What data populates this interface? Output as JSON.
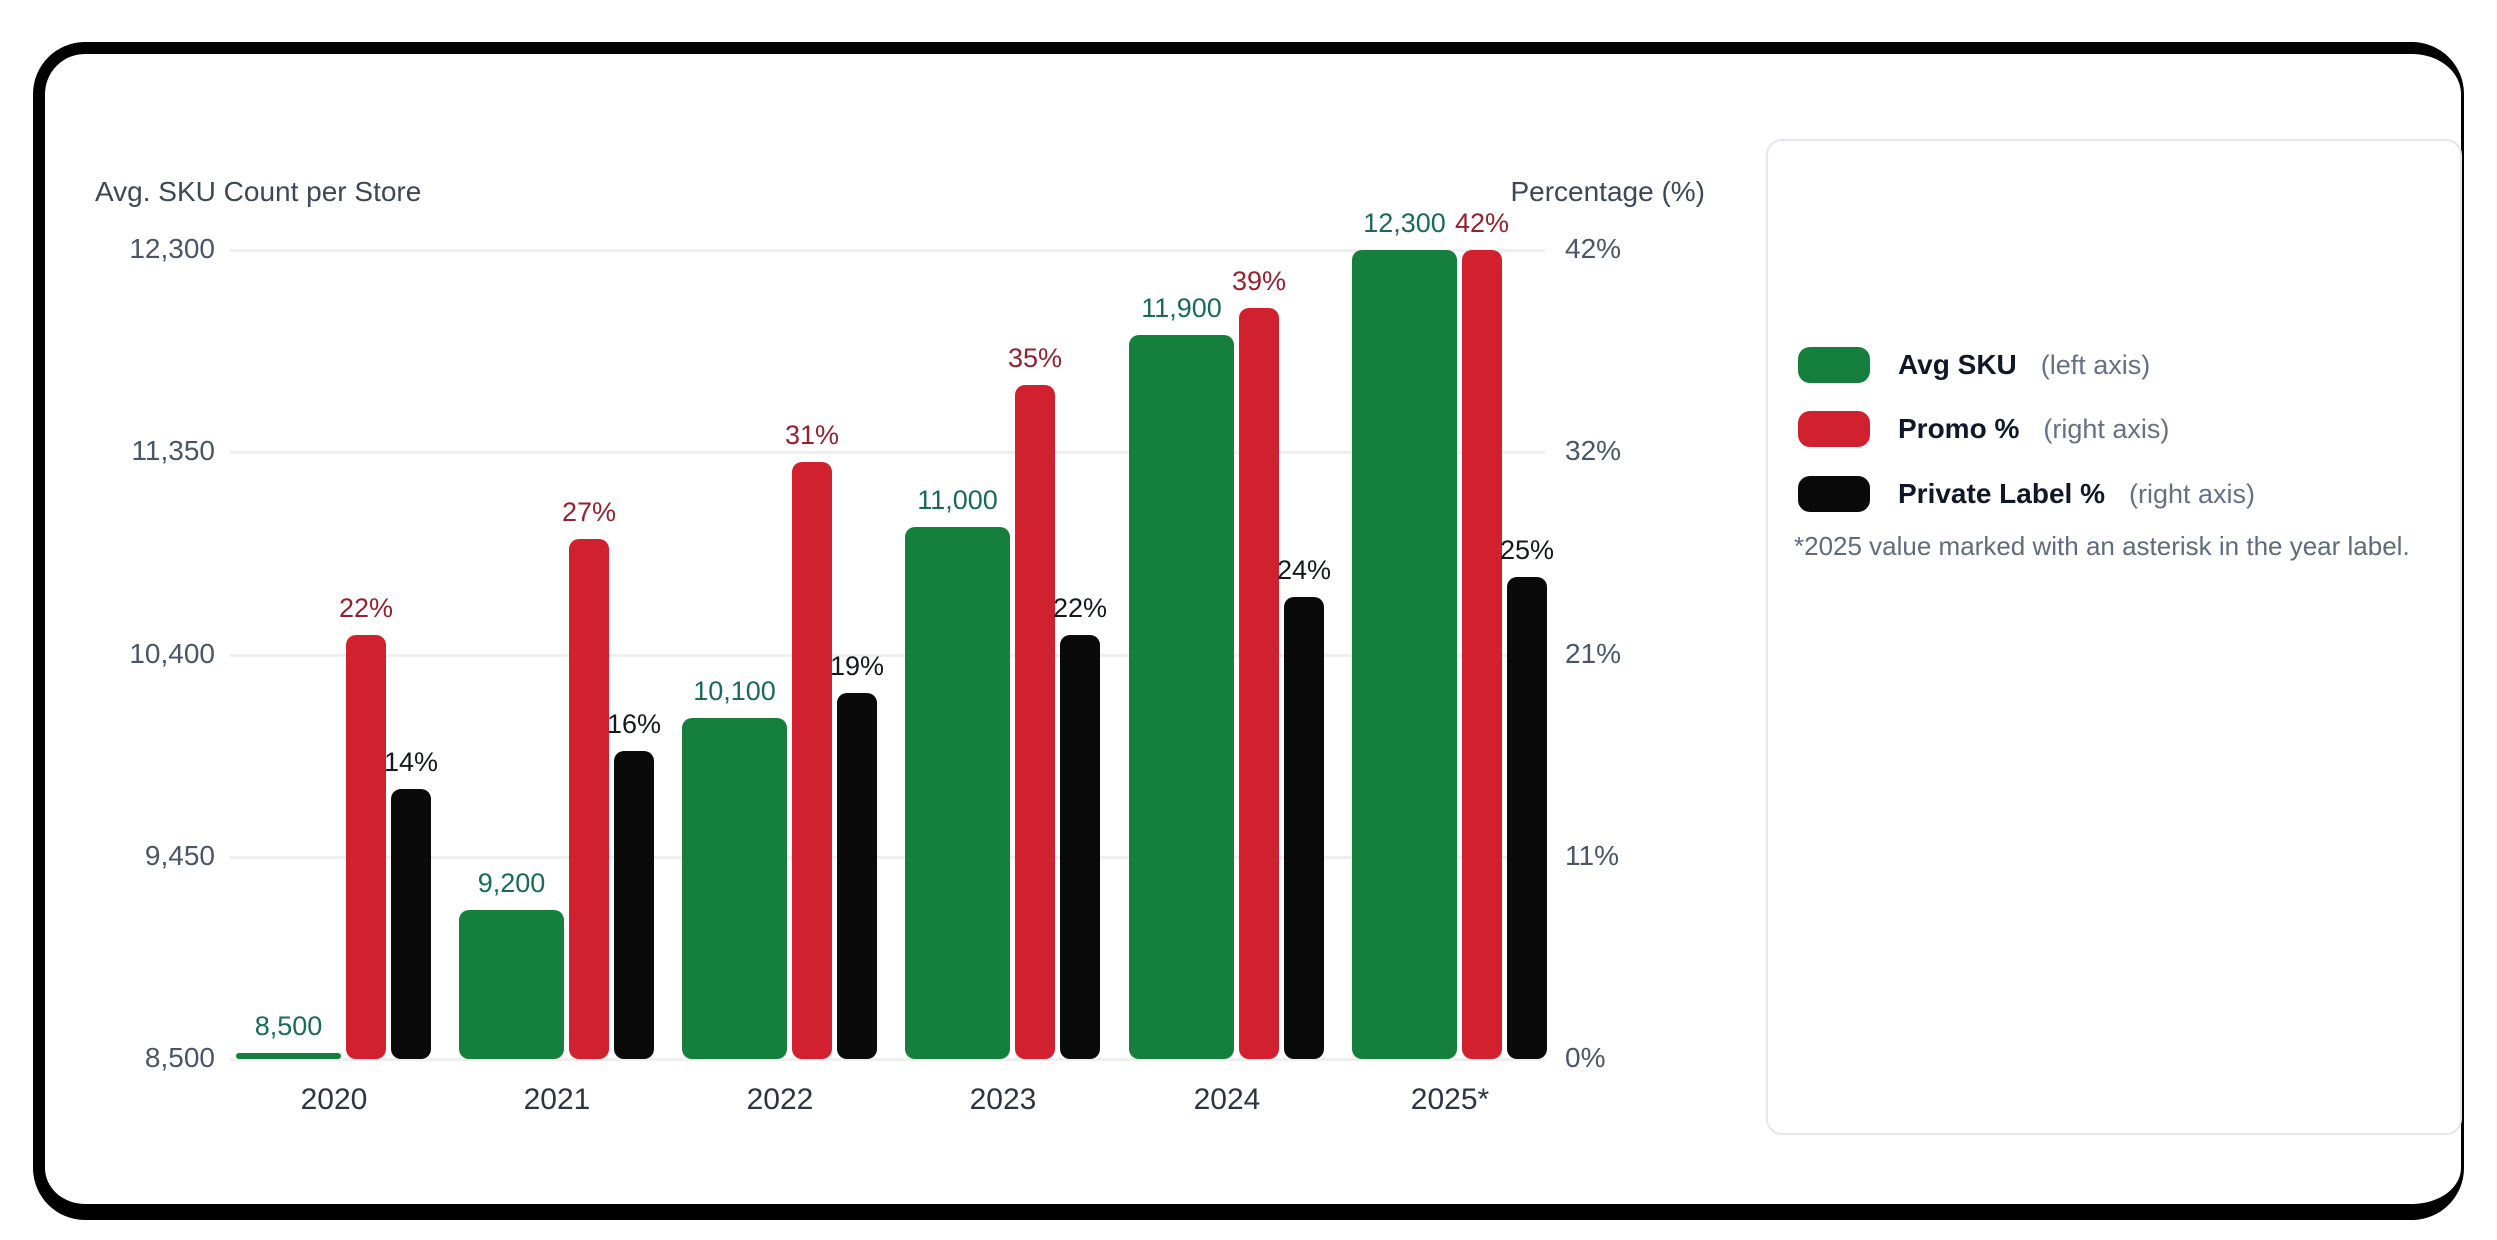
{
  "chart_data": {
    "type": "bar",
    "title": "",
    "left_axis_title": "Avg. SKU Count per Store",
    "right_axis_title": "Percentage (%)",
    "categories": [
      "2020",
      "2021",
      "2022",
      "2023",
      "2024",
      "2025*"
    ],
    "series": [
      {
        "name": "Avg SKU",
        "axis": "left",
        "color": "#15803d",
        "label_color": "#1a6a5c",
        "values": [
          8500,
          9200,
          10100,
          11000,
          11900,
          12300
        ],
        "labels": [
          "8,500",
          "9,200",
          "10,100",
          "11,000",
          "11,900",
          "12,300"
        ]
      },
      {
        "name": "Promo %",
        "axis": "right",
        "color": "#d1202e",
        "label_color": "#95202e",
        "values": [
          22,
          27,
          31,
          35,
          39,
          42
        ],
        "labels": [
          "22%",
          "27%",
          "31%",
          "35%",
          "39%",
          "42%"
        ]
      },
      {
        "name": "Private Label %",
        "axis": "right",
        "color": "#0a0a0a",
        "label_color": "#15181d",
        "values": [
          14,
          16,
          19,
          22,
          24,
          25
        ],
        "labels": [
          "14%",
          "16%",
          "19%",
          "22%",
          "24%",
          "25%"
        ]
      }
    ],
    "left_axis": {
      "min": 8500,
      "max": 12300,
      "tick_labels": [
        "12,300",
        "11,350",
        "10,400",
        "9,450",
        "8,500"
      ]
    },
    "right_axis": {
      "min": 0,
      "max": 42,
      "tick_labels": [
        "42%",
        "32%",
        "21%",
        "11%",
        "0%"
      ]
    },
    "grid": true,
    "legend_position": "right"
  },
  "legend": {
    "items": [
      {
        "label": "Avg SKU",
        "note": "(left axis)",
        "color": "#15803d"
      },
      {
        "label": "Promo %",
        "note": "(right axis)",
        "color": "#d1202e"
      },
      {
        "label": "Private Label %",
        "note": "(right axis)",
        "color": "#0a0a0a"
      }
    ],
    "footnote": "*2025 value marked with an asterisk in the year label."
  }
}
